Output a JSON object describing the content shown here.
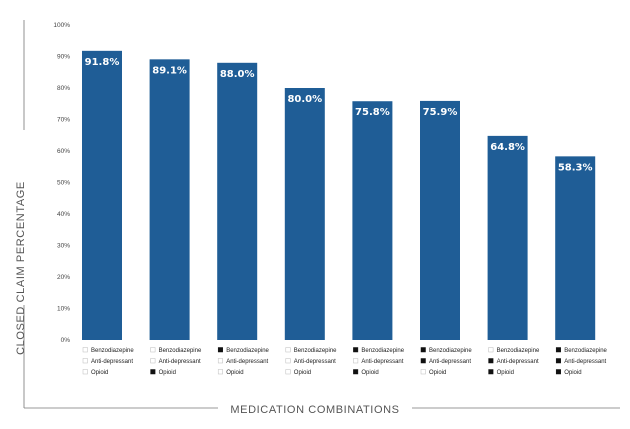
{
  "chart_data": {
    "type": "bar",
    "title": "",
    "xlabel": "MEDICATION COMBINATIONS",
    "ylabel": "CLOSED CLAIM PERCENTAGE",
    "ylim": [
      0,
      100
    ],
    "yticks": [
      0,
      10,
      20,
      30,
      40,
      50,
      60,
      70,
      80,
      90,
      100
    ],
    "ytick_labels": [
      "0%",
      "10%",
      "20%",
      "30%",
      "40%",
      "50%",
      "60%",
      "70%",
      "80%",
      "90%",
      "100%"
    ],
    "grid": false,
    "bar_color": "#1f5d96",
    "legend_labels": [
      "Benzodiazepine",
      "Anti-depressant",
      "Opioid"
    ],
    "categories": [
      {
        "benzodiazepine": false,
        "anti_depressant": false,
        "opioid": false
      },
      {
        "benzodiazepine": false,
        "anti_depressant": false,
        "opioid": true
      },
      {
        "benzodiazepine": true,
        "anti_depressant": false,
        "opioid": false
      },
      {
        "benzodiazepine": false,
        "anti_depressant": false,
        "opioid": false
      },
      {
        "benzodiazepine": true,
        "anti_depressant": false,
        "opioid": true
      },
      {
        "benzodiazepine": true,
        "anti_depressant": true,
        "opioid": false
      },
      {
        "benzodiazepine": false,
        "anti_depressant": true,
        "opioid": true
      },
      {
        "benzodiazepine": true,
        "anti_depressant": true,
        "opioid": true
      }
    ],
    "values": [
      91.8,
      89.1,
      88.0,
      80.0,
      75.8,
      75.9,
      64.8,
      58.3
    ],
    "value_labels": [
      "91.8%",
      "89.1%",
      "88.0%",
      "80.0%",
      "75.8%",
      "75.9%",
      "64.8%",
      "58.3%"
    ]
  }
}
